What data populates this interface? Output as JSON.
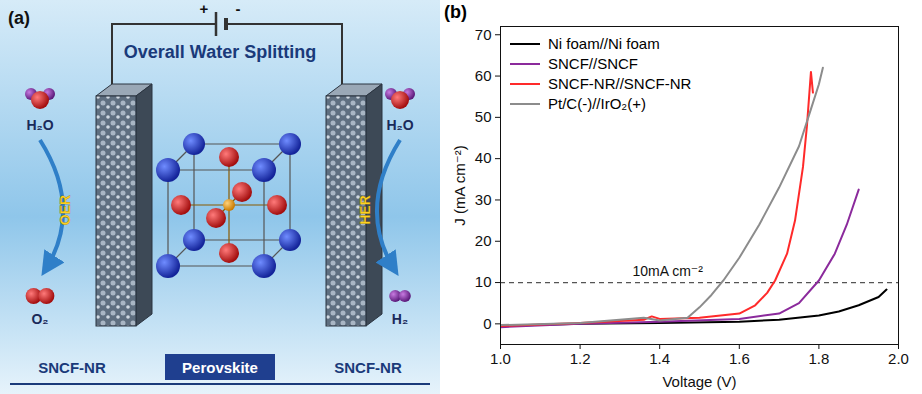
{
  "diagram": {
    "label": "(a)",
    "title": "Overall Water Splitting",
    "power": {
      "positive": "+",
      "negative": "-"
    },
    "left": {
      "reactant": "H₂O",
      "reaction": "OER",
      "product": "O₂"
    },
    "right": {
      "reactant": "H₂O",
      "reaction": "HER",
      "product": "H₂"
    },
    "footer": [
      "SNCF-NR",
      "Perovskite",
      "SNCF-NR"
    ]
  },
  "chart_data": {
    "type": "line",
    "title": "(b)",
    "x_label": "Voltage (V)",
    "y_label": "J (mA cm⁻²)",
    "xlim": [
      1,
      2
    ],
    "xticks": [
      {
        "value": 1,
        "label": "1.0"
      },
      1.2,
      1.4,
      1.6,
      1.8,
      {
        "value": 2,
        "label": "2.0"
      }
    ],
    "ylim": [
      -5,
      72
    ],
    "yticks": [
      0,
      10,
      20,
      30,
      40,
      50,
      60,
      70
    ],
    "legend": "upper left",
    "annotations": [
      {
        "text": "10mA cm⁻²",
        "y": 10,
        "line_style": "dashed"
      }
    ],
    "series": [
      {
        "name": "Ni foam//Ni foam",
        "color": "#000000",
        "x": [
          1.0,
          1.2,
          1.4,
          1.6,
          1.7,
          1.8,
          1.85,
          1.9,
          1.95,
          1.97
        ],
        "values": [
          -0.5,
          0,
          0.2,
          0.5,
          1.0,
          2.0,
          3.0,
          4.5,
          6.5,
          8.3
        ]
      },
      {
        "name": "SNCF//SNCF",
        "color": "#8b2a9c",
        "x": [
          1.0,
          1.2,
          1.4,
          1.6,
          1.7,
          1.75,
          1.8,
          1.84,
          1.87,
          1.9
        ],
        "values": [
          -0.8,
          0,
          0.5,
          1.2,
          2.5,
          5,
          10.5,
          17,
          24,
          32.5
        ]
      },
      {
        "name": "SNCF-NR//SNCF-NR",
        "color": "#ff2a2a",
        "x": [
          1.0,
          1.2,
          1.36,
          1.38,
          1.4,
          1.5,
          1.6,
          1.64,
          1.67,
          1.69,
          1.72,
          1.74,
          1.76,
          1.77,
          1.78,
          1.785
        ],
        "values": [
          -0.5,
          0.2,
          1.0,
          1.8,
          1.2,
          1.5,
          2.5,
          4.5,
          7.5,
          10.5,
          17,
          25,
          38,
          48,
          61,
          56
        ]
      },
      {
        "name": "Pt/C(-)//IrO₂(+)",
        "color": "#8c8c8c",
        "x": [
          1.0,
          1.2,
          1.36,
          1.4,
          1.47,
          1.5,
          1.53,
          1.56,
          1.6,
          1.65,
          1.7,
          1.75,
          1.78,
          1.8,
          1.81
        ],
        "values": [
          -0.3,
          0.2,
          1.5,
          0.8,
          1.5,
          4,
          7,
          10.5,
          16,
          24,
          33,
          43,
          52,
          58,
          62
        ]
      }
    ]
  }
}
